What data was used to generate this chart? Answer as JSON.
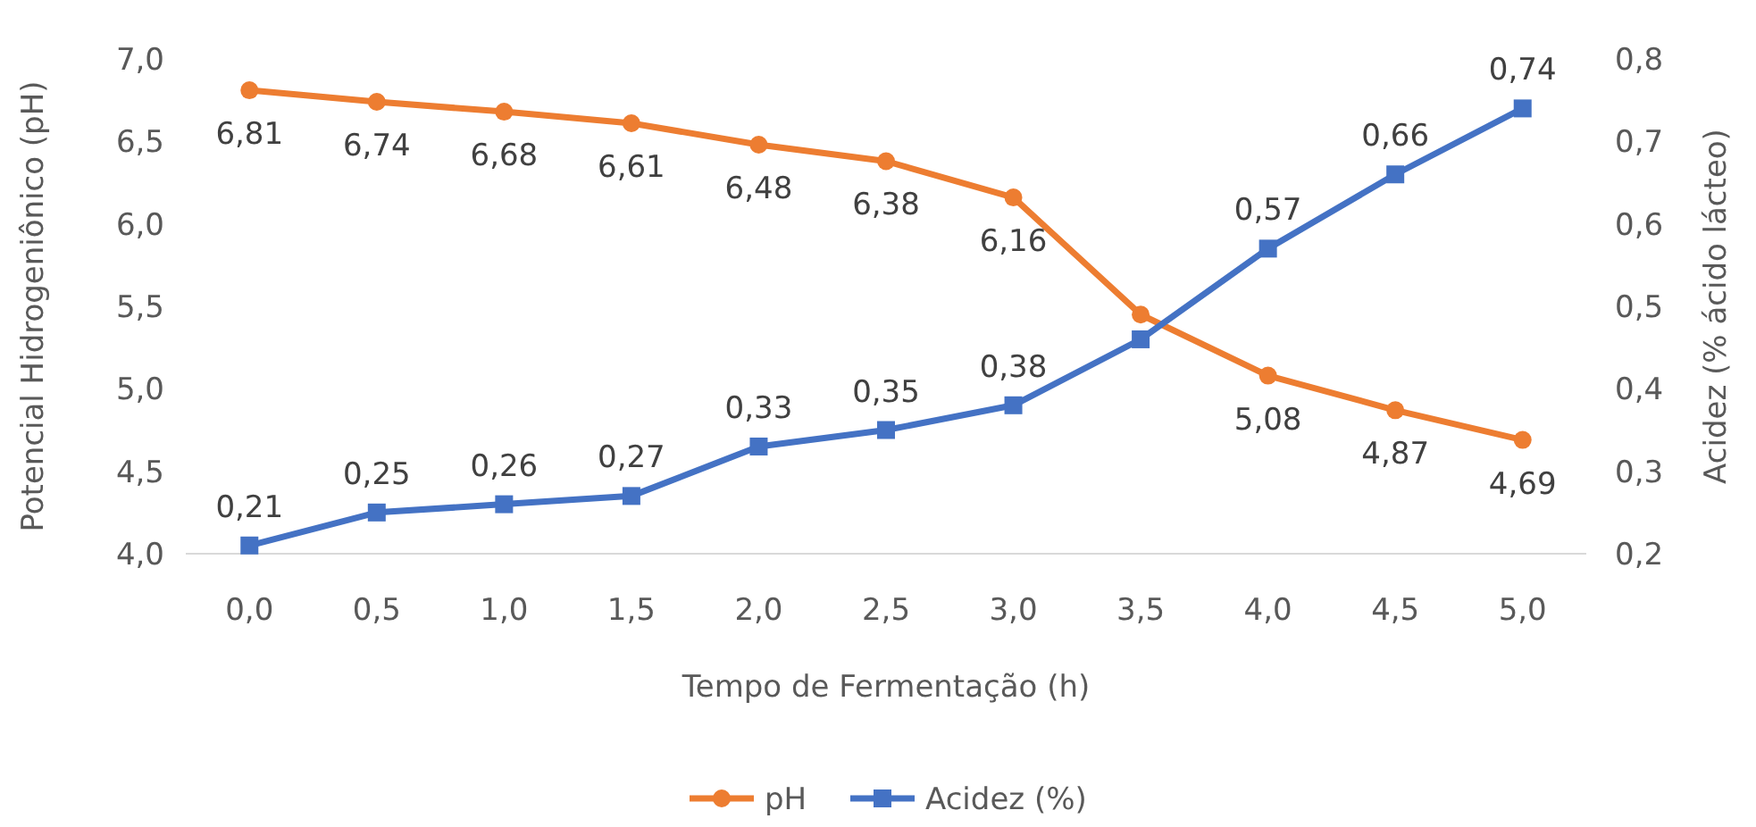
{
  "chart_data": {
    "type": "line",
    "xlabel": "Tempo de Fermentação (h)",
    "ylabel": "Potencial Hidrogeniônico (pH)",
    "y2label": "Acidez (% ácido lácteo)",
    "categories": [
      "0,0",
      "0,5",
      "1,0",
      "1,5",
      "2,0",
      "2,5",
      "3,0",
      "3,5",
      "4,0",
      "4,5",
      "5,0"
    ],
    "ylim": [
      4,
      7
    ],
    "yticks": [
      {
        "value": 4,
        "label": "4,0"
      },
      {
        "value": 4.5,
        "label": "4,5"
      },
      {
        "value": 5,
        "label": "5,0"
      },
      {
        "value": 5.5,
        "label": "5,5"
      },
      {
        "value": 6,
        "label": "6,0"
      },
      {
        "value": 6.5,
        "label": "6,5"
      },
      {
        "value": 7,
        "label": "7,0"
      }
    ],
    "y2lim": [
      0.2,
      0.8
    ],
    "y2ticks": [
      {
        "value": 0.2,
        "label": "0,2"
      },
      {
        "value": 0.3,
        "label": "0,3"
      },
      {
        "value": 0.4,
        "label": "0,4"
      },
      {
        "value": 0.5,
        "label": "0,5"
      },
      {
        "value": 0.6,
        "label": "0,6"
      },
      {
        "value": 0.7,
        "label": "0,7"
      },
      {
        "value": 0.8,
        "label": "0,8"
      }
    ],
    "grid": false,
    "legend": "bottom",
    "series": [
      {
        "name": "pH",
        "color": "#ed7d31",
        "marker": "circle",
        "values": [
          6.81,
          6.74,
          6.68,
          6.61,
          6.48,
          6.38,
          6.16,
          5.45,
          5.08,
          4.87,
          4.69
        ],
        "value_labels": [
          "6,81",
          "6,74",
          "6,68",
          "6,61",
          "6,48",
          "6,38",
          "6,16",
          null,
          "5,08",
          "4,87",
          "4,69"
        ]
      },
      {
        "name": "Acidez (%)",
        "color": "#4472c4",
        "marker": "square",
        "axis": "y2",
        "values": [
          0.21,
          0.25,
          0.26,
          0.27,
          0.33,
          0.35,
          0.38,
          0.46,
          0.57,
          0.66,
          0.74
        ],
        "value_labels": [
          "0,21",
          "0,25",
          "0,26",
          "0,27",
          "0,33",
          "0,35",
          "0,38",
          null,
          "0,57",
          "0,66",
          "0,74"
        ]
      }
    ]
  }
}
